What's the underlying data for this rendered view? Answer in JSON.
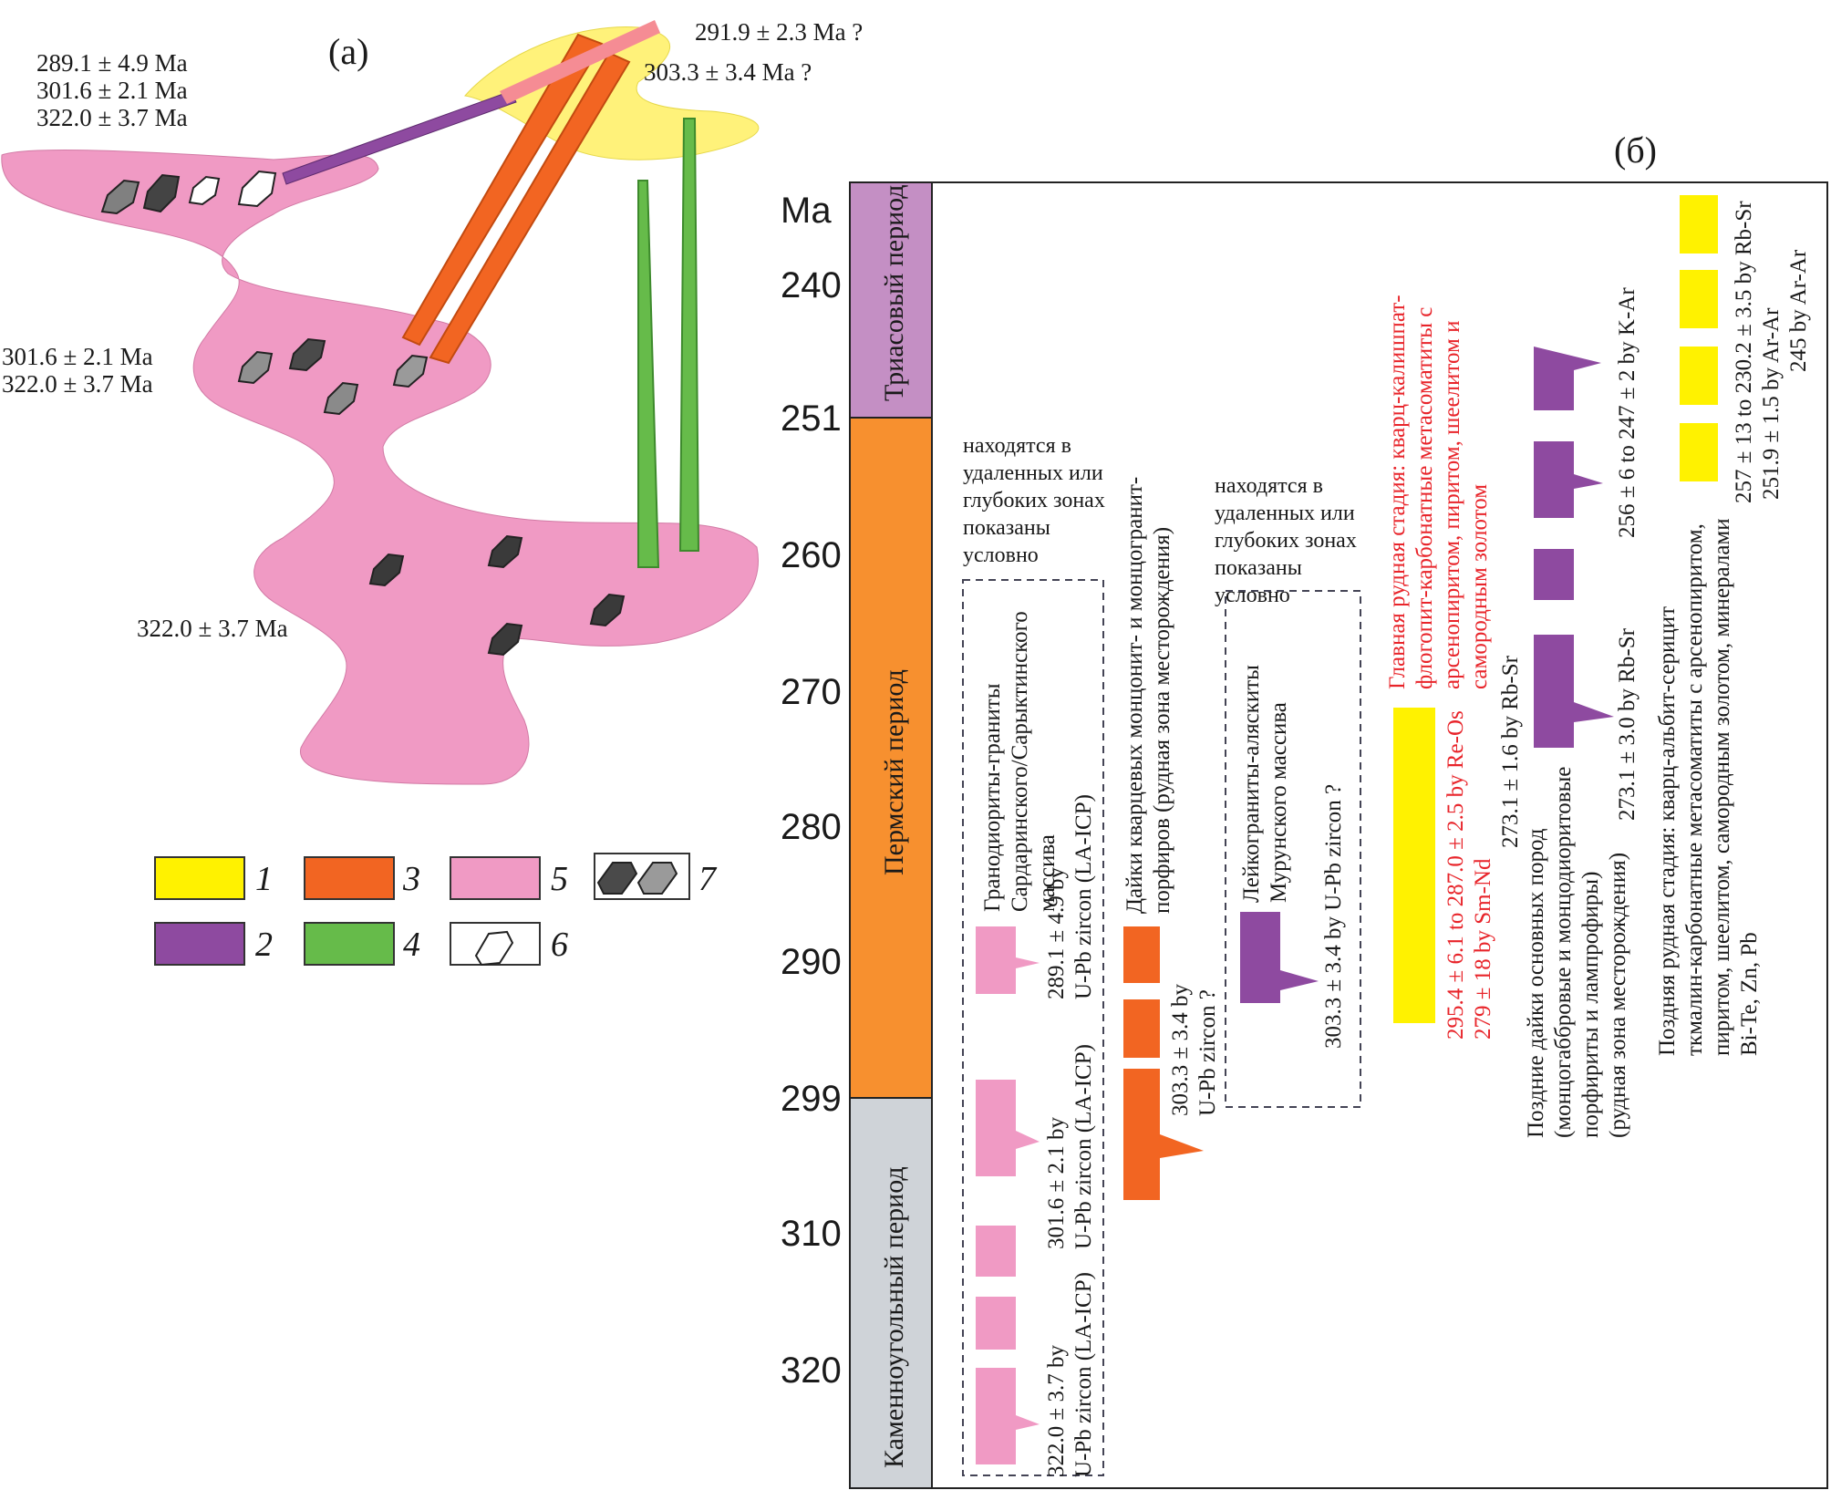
{
  "panel_a": {
    "label": "(a)",
    "ages_top_left": [
      "289.1 ± 4.9 Ma",
      "301.6 ± 2.1 Ma",
      "322.0 ± 3.7 Ma"
    ],
    "ages_mid_left": [
      "301.6 ± 2.1 Ma",
      "322.0 ± 3.7 Ma"
    ],
    "age_bottom": "322.0 ± 3.7 Ma",
    "age_top_right_1": "291.9 ± 2.3 Ma ?",
    "age_top_right_2": "303.3 ± 3.4 Ma ?",
    "legend": [
      {
        "num": "1",
        "color": "#fff200"
      },
      {
        "num": "2",
        "color": "#8e4aa0"
      },
      {
        "num": "3",
        "color": "#f26522"
      },
      {
        "num": "4",
        "color": "#66bb4a"
      },
      {
        "num": "5",
        "color": "#f09ac4"
      },
      {
        "num": "6",
        "color": "#ffffff"
      },
      {
        "num": "7",
        "color": "#555555"
      }
    ]
  },
  "panel_b": {
    "label": "(б)",
    "axis_label": "Ma",
    "ticks": [
      "240",
      "251",
      "260",
      "270",
      "280",
      "290",
      "299",
      "310",
      "320"
    ],
    "periods": [
      {
        "name": "Триасовый период",
        "color": "#c48fc4"
      },
      {
        "name": "Пермский период",
        "color": "#f7902f"
      },
      {
        "name": "Каменноугольный период",
        "color": "#cfd3d8"
      }
    ],
    "note_left": [
      "находятся в",
      "удаленных или",
      "глубоких зонах",
      "показаны",
      "условно"
    ],
    "note_mid": [
      "находятся в",
      "удаленных или",
      "глубоких зонах",
      "показаны",
      "условно"
    ],
    "granite_title": [
      "Гранодиориты-граниты",
      "Сардаринского/Сарыктинского",
      "массива"
    ],
    "granite_age1": [
      "289.1 ± 4.9 by",
      "U-Pb zircon (LA-ICP)"
    ],
    "granite_age2": [
      "301.6 ± 2.1 by",
      "U-Pb zircon (LA-ICP)"
    ],
    "granite_age3": [
      "322.0 ± 3.7 by",
      "U-Pb zircon (LA-ICP)"
    ],
    "dyke_title": [
      "Дайки кварцевых монцонит- и монцогранит-",
      "порфиров (рудная зона месторождения)"
    ],
    "dyke_age": [
      "303.3 ± 3.4 by",
      "U-Pb zircon ?"
    ],
    "leuco_title": [
      "Лейкограниты-аляскиты",
      "Мурунского массива"
    ],
    "leuco_age": [
      "303.3 ± 3.4 by U-Pb zircon ?"
    ],
    "main_stage": [
      "Главная рудная стадия: кварц-калишпат-",
      "флогопит-карбонатные метасоматиты с",
      "арсенопиритом, пиритом, шеелитом и",
      "самородным золотом"
    ],
    "main_ages": [
      "295.4 ± 6.1 to 287.0 ± 2.5 by Re-Os",
      "279 ± 18 by Sm-Nd"
    ],
    "main_ages_black": [
      "273.1 ± 1.6 by Rb-Sr"
    ],
    "late_dykes": [
      "Поздние дайки основных пород",
      "(монцогаббровые и монцодиоритовые",
      "порфириты и лампрофиры)",
      "(рудная зона месторождения)"
    ],
    "late_dyke_age1": "273.1 ± 3.0 by Rb-Sr",
    "late_dyke_age2": "256 ± 6 to 247 ± 2 by K-Ar",
    "late_stage": [
      "Поздняя рудная стадия: кварц-альбит-серицит",
      "ткмалин-карбонатные метасоматиты с арсенопиритом,",
      "пиритом, шеелитом, самородным золотом, минералами",
      "Bi-Te, Zn, Pb"
    ],
    "late_stage_ages": [
      "257 ± 13 to 230.2 ± 3.5 by Rb-Sr",
      "251.9 ± 1.5 by Ar-Ar",
      "245 by Ar-Ar"
    ]
  }
}
